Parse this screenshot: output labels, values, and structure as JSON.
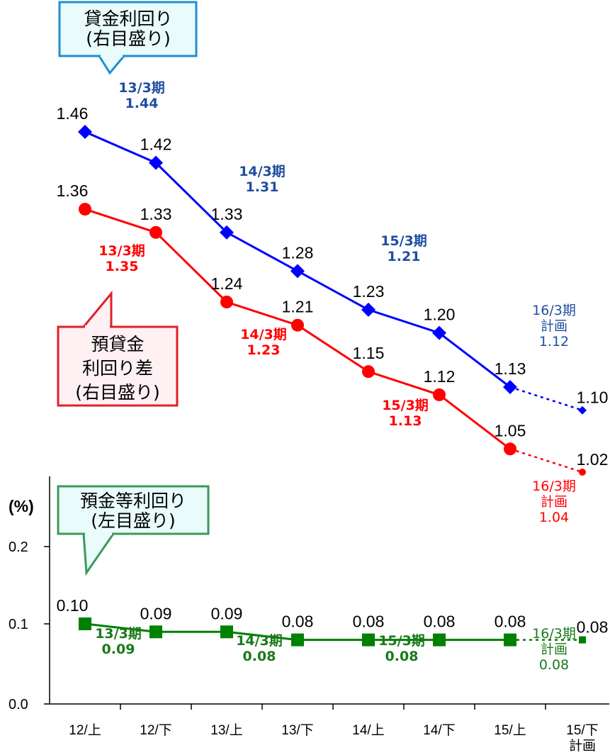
{
  "chart_data": {
    "type": "line",
    "categories": [
      "12/上",
      "12/下",
      "13/上",
      "13/下",
      "14/上",
      "14/下",
      "15/上",
      "15/下"
    ],
    "x_extra_label": "計画",
    "left_axis": {
      "unit": "(%)",
      "ylim": [
        0.0,
        0.2
      ],
      "ticks": [
        "0.0",
        "0.1",
        "0.2"
      ]
    },
    "series": [
      {
        "key": "loan",
        "axis": "right",
        "color": "#0000ff",
        "marker": "diamond",
        "values": [
          1.46,
          1.42,
          1.33,
          1.28,
          1.23,
          1.2,
          1.13,
          1.1
        ],
        "labels": [
          "1.46",
          "1.42",
          "1.33",
          "1.28",
          "1.23",
          "1.20",
          "1.13",
          "1.10"
        ],
        "planned_last": true
      },
      {
        "key": "spread",
        "axis": "right",
        "color": "#ff0000",
        "marker": "circle",
        "values": [
          1.36,
          1.33,
          1.24,
          1.21,
          1.15,
          1.12,
          1.05,
          1.02
        ],
        "labels": [
          "1.36",
          "1.33",
          "1.24",
          "1.21",
          "1.15",
          "1.12",
          "1.05",
          "1.02"
        ],
        "planned_last": true
      },
      {
        "key": "deposit",
        "axis": "left",
        "color": "#008000",
        "marker": "square",
        "values": [
          0.1,
          0.09,
          0.09,
          0.08,
          0.08,
          0.08,
          0.08,
          0.08
        ],
        "labels": [
          "0.10",
          "0.09",
          "0.09",
          "0.08",
          "0.08",
          "0.08",
          "0.08",
          "0.08"
        ],
        "planned_last": true
      }
    ],
    "annotations": [
      {
        "series": "loan",
        "lines": [
          "13/3期",
          "1.44"
        ],
        "color": "#1f4e9f"
      },
      {
        "series": "loan",
        "lines": [
          "14/3期",
          "1.31"
        ],
        "color": "#1f4e9f"
      },
      {
        "series": "loan",
        "lines": [
          "15/3期",
          "1.21"
        ],
        "color": "#1f4e9f"
      },
      {
        "series": "loan",
        "lines": [
          "16/3期",
          "計画",
          "1.12"
        ],
        "color": "#1f4e9f"
      },
      {
        "series": "spread",
        "lines": [
          "13/3期",
          "1.35"
        ],
        "color": "#ff0000"
      },
      {
        "series": "spread",
        "lines": [
          "14/3期",
          "1.23"
        ],
        "color": "#ff0000"
      },
      {
        "series": "spread",
        "lines": [
          "15/3期",
          "1.13"
        ],
        "color": "#ff0000"
      },
      {
        "series": "spread",
        "lines": [
          "16/3期",
          "計画",
          "1.04"
        ],
        "color": "#ff0000"
      },
      {
        "series": "deposit",
        "lines": [
          "13/3期",
          "0.09"
        ],
        "color": "#1a7a1a"
      },
      {
        "series": "deposit",
        "lines": [
          "14/3期",
          "0.08"
        ],
        "color": "#1a7a1a"
      },
      {
        "series": "deposit",
        "lines": [
          "15/3期",
          "0.08"
        ],
        "color": "#1a7a1a"
      },
      {
        "series": "deposit",
        "lines": [
          "16/3期",
          "計画",
          "0.08"
        ],
        "color": "#1a7a1a"
      }
    ],
    "callouts": [
      {
        "series": "loan",
        "lines": [
          "貸金利回り",
          "(右目盛り)"
        ],
        "border": "#1f8fd0",
        "fill": "#e9fbfb"
      },
      {
        "series": "spread",
        "lines": [
          "預貸金",
          "利回り差",
          "(右目盛り)"
        ],
        "border": "#e0202a",
        "fill": "#fff0f3"
      },
      {
        "series": "deposit",
        "lines": [
          "預金等利回り",
          "(左目盛り)"
        ],
        "border": "#3a9a5a",
        "fill": "#e9fbfb"
      }
    ]
  }
}
